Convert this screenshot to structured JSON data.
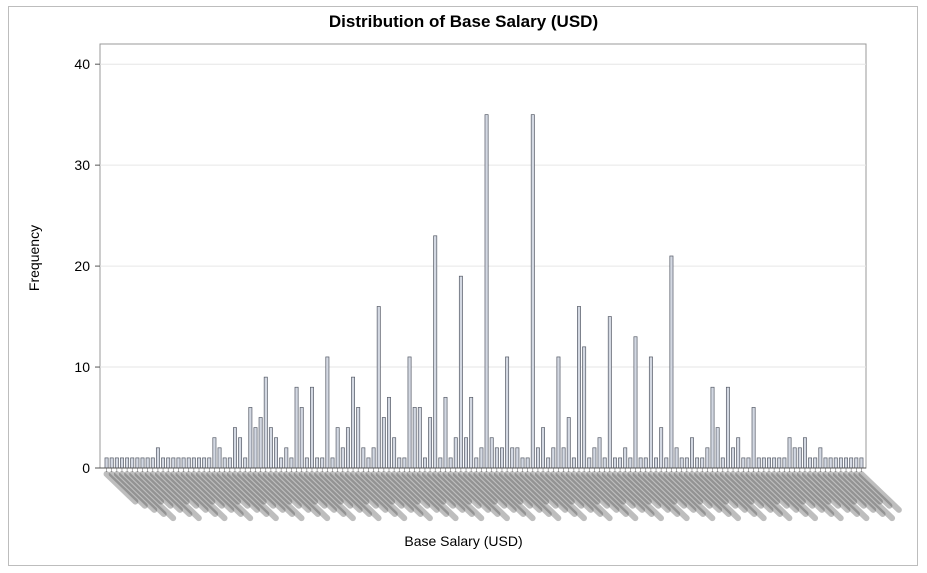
{
  "chart_data": {
    "type": "bar",
    "title": "Distribution of Base Salary (USD)",
    "xlabel": "Base Salary (USD)",
    "ylabel": "Frequency",
    "ylim": [
      0,
      42
    ],
    "yticks": [
      0,
      10,
      20,
      30,
      40
    ],
    "grid": true,
    "legend": "none",
    "colors": {
      "bar_fill": "#d3d8e2",
      "bar_stroke": "#555a66",
      "grid": "#e6e6e6",
      "axis": "#999999"
    },
    "values": [
      1,
      1,
      1,
      1,
      1,
      1,
      1,
      1,
      1,
      1,
      2,
      1,
      1,
      1,
      1,
      1,
      1,
      1,
      1,
      1,
      1,
      3,
      2,
      1,
      1,
      4,
      3,
      1,
      6,
      4,
      5,
      9,
      4,
      3,
      1,
      2,
      1,
      8,
      6,
      1,
      8,
      1,
      1,
      11,
      1,
      4,
      2,
      4,
      9,
      6,
      2,
      1,
      2,
      16,
      5,
      7,
      3,
      1,
      1,
      11,
      6,
      6,
      1,
      5,
      23,
      1,
      7,
      1,
      3,
      19,
      3,
      7,
      1,
      2,
      35,
      3,
      2,
      2,
      11,
      2,
      2,
      1,
      1,
      35,
      2,
      4,
      1,
      2,
      11,
      2,
      5,
      1,
      16,
      12,
      1,
      2,
      3,
      1,
      15,
      1,
      1,
      2,
      1,
      13,
      1,
      1,
      11,
      1,
      4,
      1,
      21,
      2,
      1,
      1,
      3,
      1,
      1,
      2,
      8,
      4,
      1,
      8,
      2,
      3,
      1,
      1,
      6,
      1,
      1,
      1,
      1,
      1,
      1,
      3,
      2,
      2,
      3,
      1,
      1,
      2,
      1,
      1,
      1,
      1,
      1,
      1,
      1,
      1
    ]
  }
}
